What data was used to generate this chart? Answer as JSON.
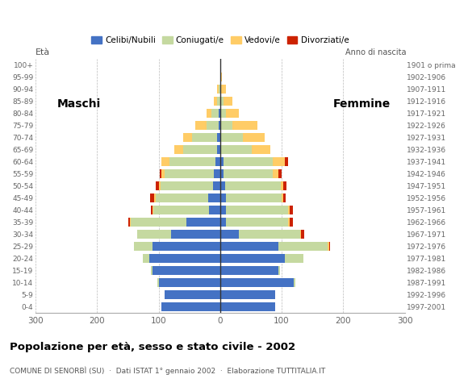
{
  "age_groups": [
    "0-4",
    "5-9",
    "10-14",
    "15-19",
    "20-24",
    "25-29",
    "30-34",
    "35-39",
    "40-44",
    "45-49",
    "50-54",
    "55-59",
    "60-64",
    "65-69",
    "70-74",
    "75-79",
    "80-84",
    "85-89",
    "90-94",
    "95-99",
    "100+"
  ],
  "birth_years": [
    "1997-2001",
    "1992-1996",
    "1987-1991",
    "1982-1986",
    "1977-1981",
    "1972-1976",
    "1967-1971",
    "1962-1966",
    "1957-1961",
    "1952-1956",
    "1947-1951",
    "1942-1946",
    "1937-1941",
    "1932-1936",
    "1927-1931",
    "1922-1926",
    "1917-1921",
    "1912-1916",
    "1907-1911",
    "1902-1906",
    "1901 o prima"
  ],
  "males": {
    "celibi": [
      95,
      90,
      100,
      110,
      115,
      110,
      80,
      55,
      18,
      20,
      12,
      10,
      8,
      5,
      5,
      2,
      2,
      0,
      0,
      0,
      0
    ],
    "coniugati": [
      0,
      0,
      2,
      2,
      10,
      30,
      55,
      90,
      90,
      85,
      85,
      80,
      75,
      55,
      40,
      20,
      12,
      5,
      3,
      0,
      0
    ],
    "vedovi": [
      0,
      0,
      0,
      0,
      0,
      0,
      0,
      2,
      2,
      2,
      3,
      5,
      12,
      15,
      15,
      18,
      8,
      5,
      2,
      0,
      0
    ],
    "divorziati": [
      0,
      0,
      0,
      0,
      0,
      0,
      0,
      2,
      2,
      7,
      5,
      3,
      0,
      0,
      0,
      0,
      0,
      0,
      0,
      0,
      0
    ]
  },
  "females": {
    "nubili": [
      90,
      90,
      120,
      95,
      105,
      95,
      30,
      10,
      10,
      10,
      8,
      5,
      5,
      2,
      2,
      2,
      0,
      0,
      0,
      0,
      0
    ],
    "coniugate": [
      0,
      0,
      2,
      2,
      30,
      80,
      100,
      100,
      100,
      90,
      90,
      80,
      80,
      50,
      35,
      18,
      10,
      5,
      2,
      0,
      0
    ],
    "vedove": [
      0,
      0,
      0,
      0,
      0,
      2,
      2,
      3,
      3,
      3,
      5,
      10,
      20,
      30,
      35,
      40,
      20,
      15,
      8,
      3,
      0
    ],
    "divorziate": [
      0,
      0,
      0,
      0,
      0,
      2,
      5,
      5,
      5,
      3,
      5,
      5,
      5,
      0,
      0,
      0,
      0,
      0,
      0,
      0,
      0
    ]
  },
  "colors": {
    "celibi": "#4472C4",
    "coniugati": "#C5D9A0",
    "vedovi": "#FFCC66",
    "divorziati": "#CC2200"
  },
  "title": "Popolazione per età, sesso e stato civile - 2002",
  "subtitle": "COMUNE DI SENORBÌ (SU)  ·  Dati ISTAT 1° gennaio 2002  ·  Elaborazione TUTTITALIA.IT",
  "xlim": 300,
  "ylabel_left": "Età",
  "ylabel_right": "Anno di nascita",
  "label_maschi": "Maschi",
  "label_femmine": "Femmine",
  "legend_labels": [
    "Celibi/Nubili",
    "Coniugati/e",
    "Vedovi/e",
    "Divorziati/e"
  ],
  "background_color": "#ffffff"
}
